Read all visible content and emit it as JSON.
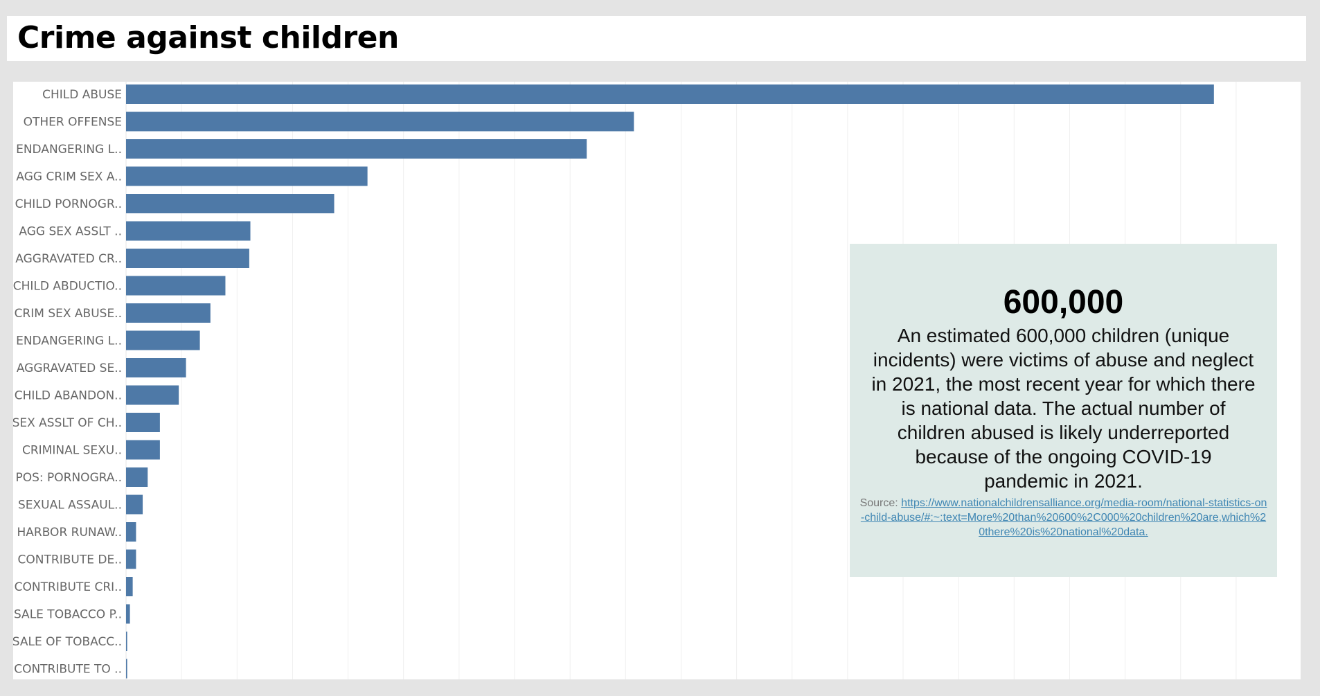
{
  "title": "Crime against children",
  "callout": {
    "number": "600,000",
    "text": "An estimated 600,000 children (unique incidents) were victims of abuse and neglect in 2021, the most recent year for which there is national data. The actual number of children abused is likely underreported because of the ongoing COVID-19 pandemic in 2021.",
    "source_label": "Source:",
    "source_link": "https://www.nationalchildrensalliance.org/media-room/national-statistics-on-child-abuse/#:~:text=More%20than%20600%2C000%20children%20are,which%20there%20is%20national%20data."
  },
  "colors": {
    "bar": "#4e79a7",
    "background": "#e4e4e4",
    "callout_bg": "#deeae7",
    "link": "#3f86b3"
  },
  "chart_data": {
    "type": "bar",
    "orientation": "horizontal",
    "categories": [
      "CHILD ABUSE",
      "OTHER OFFENSE",
      "ENDANGERING L..",
      "AGG CRIM SEX A..",
      "CHILD PORNOGR..",
      "AGG SEX ASSLT ..",
      "AGGRAVATED CR..",
      "CHILD ABDUCTIO..",
      "CRIM SEX ABUSE..",
      "ENDANGERING L..",
      "AGGRAVATED SE..",
      "CHILD ABANDON..",
      "SEX ASSLT OF CH..",
      "CRIMINAL SEXU..",
      "POS: PORNOGRA..",
      "SEXUAL ASSAUL..",
      "HARBOR RUNAW..",
      "CONTRIBUTE DE..",
      "CONTRIBUTE CRI..",
      "SALE TOBACCO P..",
      "SALE OF TOBACC..",
      "CONTRIBUTE TO .."
    ],
    "values": [
      196,
      91.5,
      83,
      43.5,
      37.5,
      22.4,
      22.2,
      17.9,
      15.2,
      13.3,
      10.8,
      9.5,
      6.1,
      6.1,
      3.9,
      3.0,
      1.8,
      1.8,
      1.2,
      0.7,
      0.2,
      0.2
    ],
    "xlim": [
      0,
      208
    ],
    "grid": true,
    "title": "",
    "xlabel": "",
    "ylabel": ""
  }
}
